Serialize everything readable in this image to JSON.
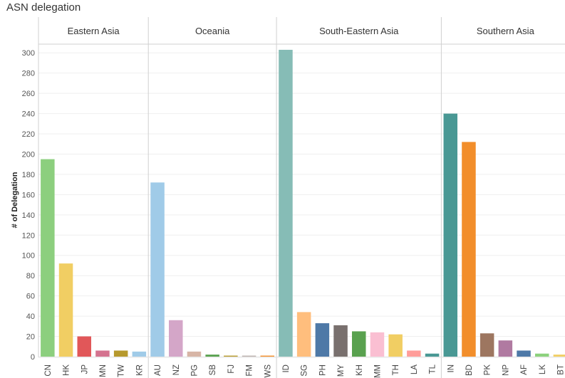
{
  "title": "ASN delegation",
  "chart_data": {
    "type": "bar",
    "title": "ASN delegation",
    "xlabel": "",
    "ylabel": "# of Delegation",
    "ylim": [
      0,
      310
    ],
    "yticks": [
      0,
      20,
      40,
      60,
      80,
      100,
      120,
      140,
      160,
      180,
      200,
      220,
      240,
      260,
      280,
      300
    ],
    "grid": true,
    "panels": [
      {
        "name": "Eastern Asia",
        "bars": [
          {
            "category": "CN",
            "value": 195,
            "color": "#8ccf7e"
          },
          {
            "category": "HK",
            "value": 92,
            "color": "#f1ce63"
          },
          {
            "category": "JP",
            "value": 20,
            "color": "#e15759"
          },
          {
            "category": "MN",
            "value": 6,
            "color": "#d4738f"
          },
          {
            "category": "TW",
            "value": 6,
            "color": "#b6992d"
          },
          {
            "category": "KR",
            "value": 5,
            "color": "#a0cbe8"
          }
        ]
      },
      {
        "name": "Oceania",
        "bars": [
          {
            "category": "AU",
            "value": 172,
            "color": "#a0cbe8"
          },
          {
            "category": "NZ",
            "value": 36,
            "color": "#d4a6c8"
          },
          {
            "category": "PG",
            "value": 5,
            "color": "#d7b5a6"
          },
          {
            "category": "SB",
            "value": 2,
            "color": "#59a14f"
          },
          {
            "category": "FJ",
            "value": 1,
            "color": "#b6992d"
          },
          {
            "category": "FM",
            "value": 1,
            "color": "#bab0ac"
          },
          {
            "category": "WS",
            "value": 1,
            "color": "#f28e2b"
          }
        ]
      },
      {
        "name": "South-Eastern Asia",
        "bars": [
          {
            "category": "ID",
            "value": 303,
            "color": "#86bcb6"
          },
          {
            "category": "SG",
            "value": 44,
            "color": "#ffbe7d"
          },
          {
            "category": "PH",
            "value": 33,
            "color": "#4e79a7"
          },
          {
            "category": "MY",
            "value": 31,
            "color": "#79706e"
          },
          {
            "category": "KH",
            "value": 25,
            "color": "#59a14f"
          },
          {
            "category": "MM",
            "value": 24,
            "color": "#fabfd2"
          },
          {
            "category": "TH",
            "value": 22,
            "color": "#f1ce63"
          },
          {
            "category": "LA",
            "value": 6,
            "color": "#ff9d9a"
          },
          {
            "category": "TL",
            "value": 3,
            "color": "#499894"
          }
        ]
      },
      {
        "name": "Southern Asia",
        "bars": [
          {
            "category": "IN",
            "value": 240,
            "color": "#499894"
          },
          {
            "category": "BD",
            "value": 212,
            "color": "#f28e2b"
          },
          {
            "category": "PK",
            "value": 23,
            "color": "#9d7660"
          },
          {
            "category": "NP",
            "value": 16,
            "color": "#b07aa1"
          },
          {
            "category": "AF",
            "value": 6,
            "color": "#4e79a7"
          },
          {
            "category": "LK",
            "value": 3,
            "color": "#8cd17d"
          },
          {
            "category": "BT",
            "value": 2,
            "color": "#f1ce63"
          }
        ]
      }
    ]
  }
}
